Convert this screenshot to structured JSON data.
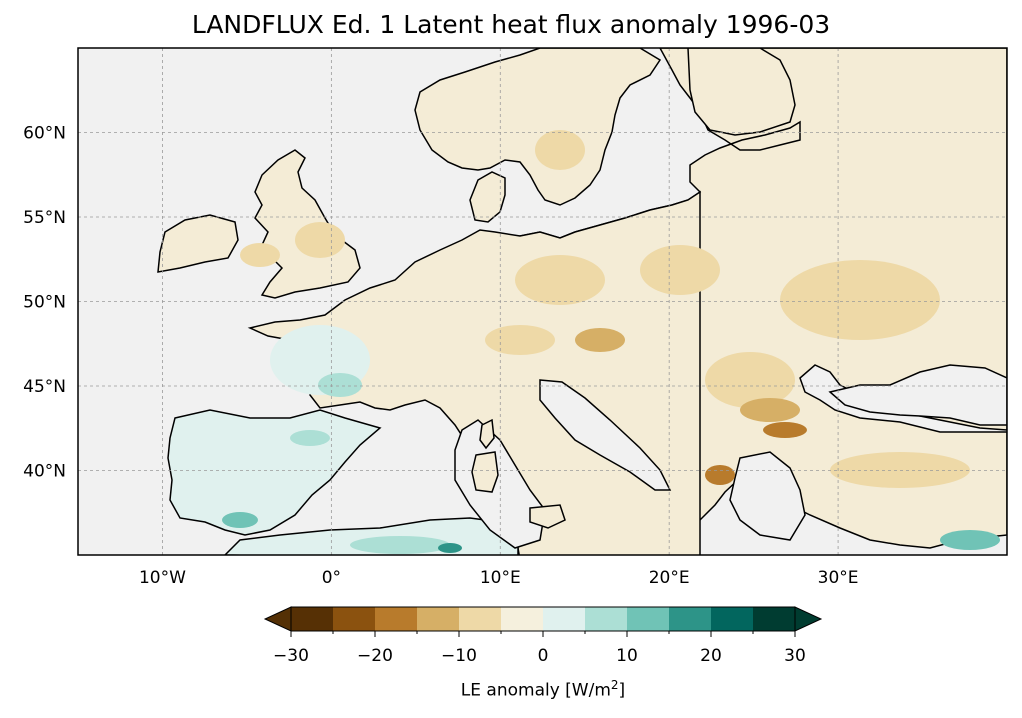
{
  "title": "LANDFLUX Ed. 1 Latent heat flux anomaly 1996-03",
  "map": {
    "lon_range": [
      -15,
      40
    ],
    "lat_range": [
      35,
      65
    ],
    "lon_ticks": [
      {
        "value": -10,
        "label": "10°W"
      },
      {
        "value": 0,
        "label": "0°"
      },
      {
        "value": 10,
        "label": "10°E"
      },
      {
        "value": 20,
        "label": "20°E"
      },
      {
        "value": 30,
        "label": "30°E"
      }
    ],
    "lat_ticks": [
      {
        "value": 40,
        "label": "40°N"
      },
      {
        "value": 45,
        "label": "45°N"
      },
      {
        "value": 50,
        "label": "50°N"
      },
      {
        "value": 55,
        "label": "55°N"
      },
      {
        "value": 60,
        "label": "60°N"
      }
    ],
    "gridlines": true,
    "ocean_color": "#f1f1f1",
    "coastline_color": "#000000"
  },
  "colorbar": {
    "label": "LE anomaly [W/m²]",
    "label_prefix": "LE anomaly [W/m",
    "label_sup": "2",
    "label_suffix": "]",
    "extend": "both",
    "boundaries": [
      -30,
      -25,
      -20,
      -15,
      -10,
      -5,
      0,
      5,
      10,
      15,
      20,
      25,
      30
    ],
    "tick_values": [
      -30,
      -20,
      -10,
      0,
      10,
      20,
      30
    ],
    "tick_labels": [
      "−30",
      "−20",
      "−10",
      "0",
      "10",
      "20",
      "30"
    ],
    "colors": [
      "#563005",
      "#8b520f",
      "#b87b2c",
      "#d6af66",
      "#eed9a7",
      "#f5f0dd",
      "#e0f1ee",
      "#acdfd5",
      "#70c3b6",
      "#2d9488",
      "#02665e",
      "#003c31"
    ],
    "under_color": "#543005",
    "over_color": "#003c30"
  },
  "dominant_land_color": "#f4ecd6"
}
